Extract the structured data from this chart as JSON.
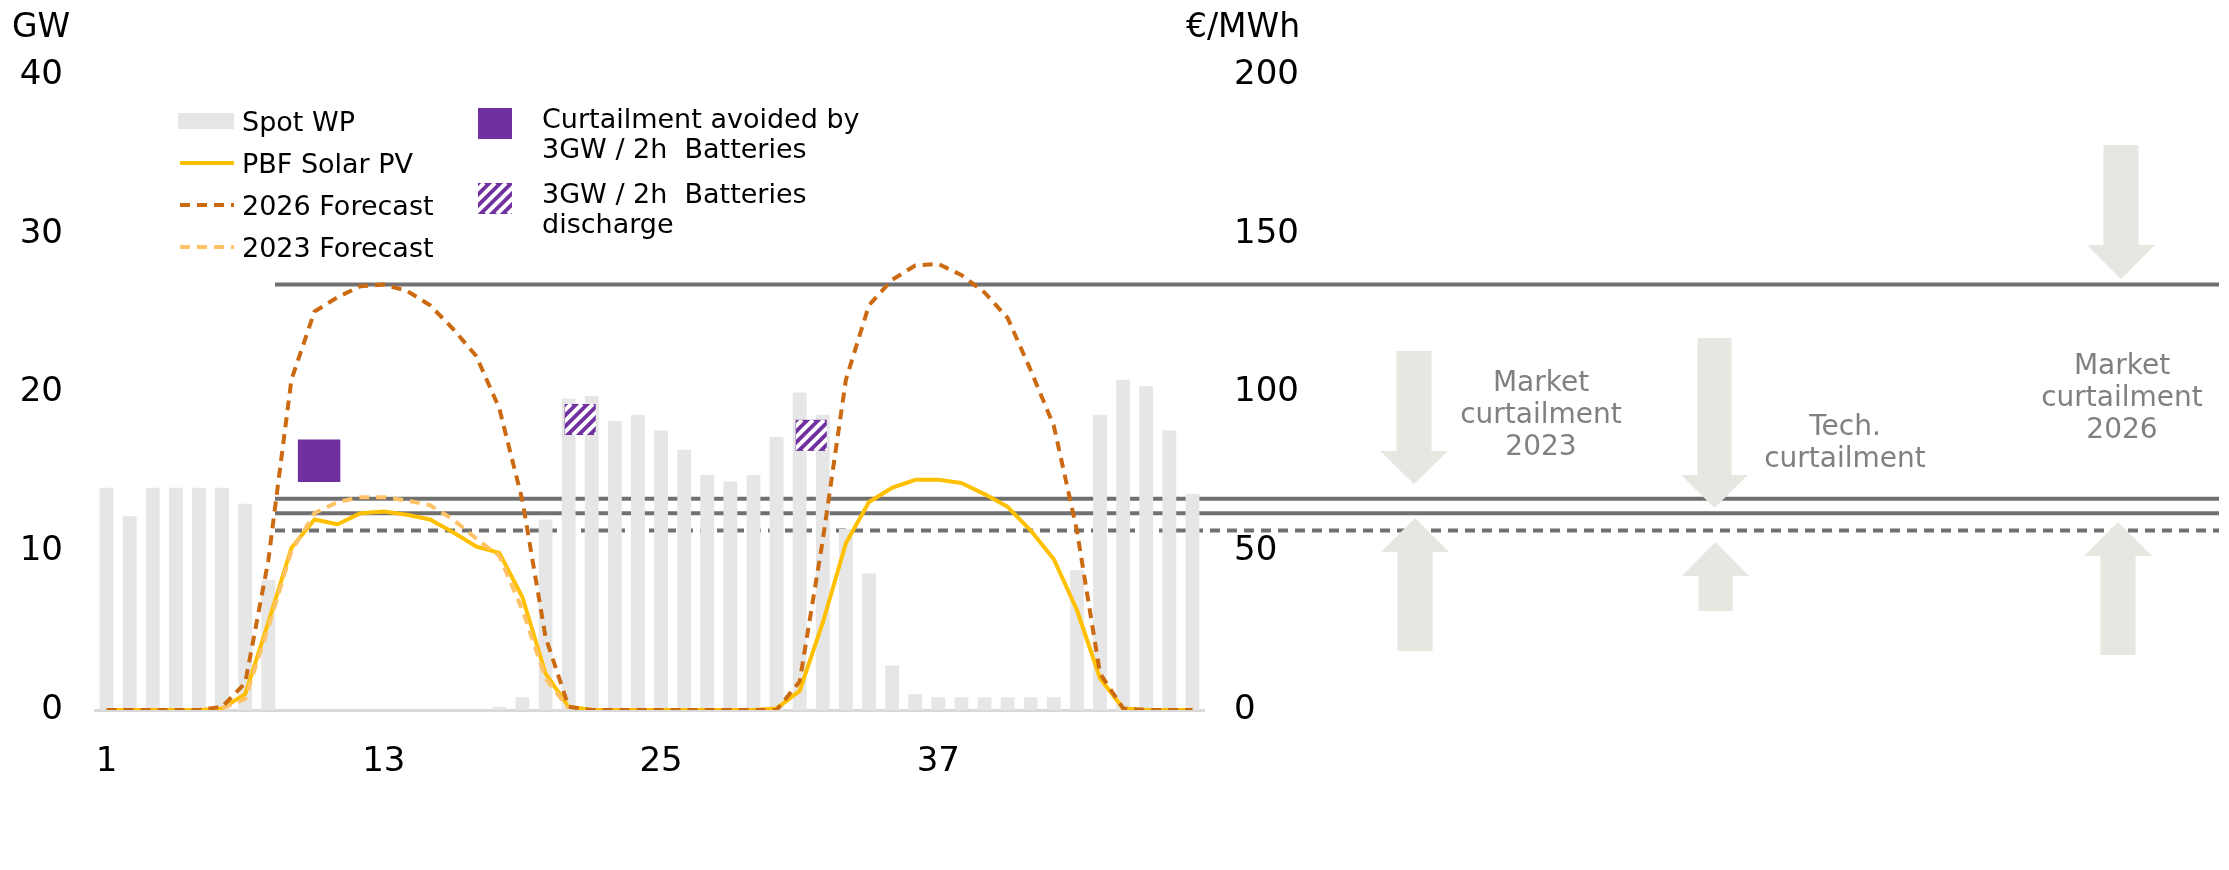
{
  "chart_data": {
    "type": "line",
    "ylabel": "GW",
    "y2label": "€/MWh",
    "x": [
      1,
      2,
      3,
      4,
      5,
      6,
      7,
      8,
      9,
      10,
      11,
      12,
      13,
      14,
      15,
      16,
      17,
      18,
      19,
      20,
      21,
      22,
      23,
      24,
      25,
      26,
      27,
      28,
      29,
      30,
      31,
      32,
      33,
      34,
      35,
      36,
      37,
      38,
      39,
      40,
      41,
      42,
      43,
      44,
      45,
      46,
      47,
      48
    ],
    "xlim": [
      0.5,
      48.5
    ],
    "xticks": [
      1,
      13,
      25,
      37
    ],
    "ylim": [
      0,
      40
    ],
    "yticks": [
      0,
      10,
      20,
      30,
      40
    ],
    "y2lim": [
      0,
      200
    ],
    "y2ticks": [
      0,
      50,
      100,
      150,
      200
    ],
    "grid": false,
    "legend": "top left",
    "series": [
      {
        "name": "Spot WP",
        "type": "bar",
        "axis": "y2",
        "color": "#e6e6e6",
        "values": [
          70,
          61,
          70,
          70,
          70,
          70,
          65,
          41,
          0,
          0,
          0,
          0,
          0,
          0,
          0,
          0,
          0,
          1,
          4,
          60,
          98,
          99,
          91,
          93,
          88,
          82,
          74,
          72,
          74,
          86,
          100,
          93,
          57,
          43,
          14,
          5,
          4,
          4,
          4,
          4,
          4,
          4,
          44,
          93,
          104,
          102,
          88,
          68
        ]
      },
      {
        "name": "PBF Solar PV",
        "color": "#ffc000",
        "line_style": "solid",
        "values": [
          0,
          0,
          0,
          0,
          0,
          0.1,
          1,
          5.5,
          10.2,
          12,
          11.7,
          12.4,
          12.5,
          12.3,
          12,
          11.2,
          10.3,
          9.9,
          7.1,
          2.3,
          0.2,
          0,
          0,
          0,
          0,
          0,
          0,
          0,
          0,
          0.1,
          1.2,
          5.5,
          10.5,
          13.1,
          14,
          14.5,
          14.5,
          14.3,
          13.6,
          12.8,
          11.3,
          9.5,
          6.3,
          2,
          0.1,
          0,
          0,
          0
        ]
      },
      {
        "name": "2026 Forecast",
        "color": "#cc6a12",
        "line_style": "dashed",
        "values": [
          0,
          0,
          0,
          0,
          0,
          0.2,
          1.7,
          9.4,
          20.8,
          25.1,
          26,
          26.7,
          26.8,
          26.4,
          25.5,
          24,
          22.3,
          19,
          13.2,
          4.6,
          0.2,
          0,
          0,
          0,
          0,
          0,
          0,
          0,
          0,
          0,
          1.8,
          10.7,
          20.8,
          25.5,
          27.1,
          28,
          28.1,
          27.4,
          26.3,
          24.7,
          21.4,
          17.9,
          11.3,
          2.3,
          0.1,
          0,
          0,
          0
        ]
      },
      {
        "name": "2023 Forecast",
        "color": "#ffc266",
        "line_style": "dashed",
        "values": [
          null,
          null,
          null,
          null,
          null,
          0.1,
          0.7,
          5.2,
          10,
          12.4,
          13.1,
          13.4,
          13.4,
          13.2,
          12.9,
          12,
          10.8,
          9.7,
          6.3,
          2,
          0.1,
          null,
          null,
          null,
          null,
          null,
          null,
          null,
          null,
          null,
          null,
          null,
          null,
          null,
          null,
          null,
          null,
          null,
          null,
          null,
          null,
          null,
          null,
          null,
          null,
          null,
          null,
          null
        ]
      },
      {
        "name": "Curtailment avoided by 3GW / 2h  Batteries",
        "type": "scatter",
        "marker": "square",
        "color": "#7030a0",
        "x": [
          10.2
        ],
        "values": [
          15.7
        ]
      },
      {
        "name": "3GW / 2h  Batteries discharge",
        "type": "scatter",
        "marker": "square",
        "color": "#7030a0",
        "x": [
          21.5,
          31.5
        ],
        "values": [
          18.3,
          17.3
        ]
      }
    ],
    "ref_lines": [
      {
        "axis": "y2",
        "value": 134,
        "color": "#707070",
        "line_style": "solid"
      },
      {
        "axis": "y2",
        "value": 66.5,
        "color": "#707070",
        "line_style": "solid"
      },
      {
        "axis": "y2",
        "value": 62,
        "color": "#707070",
        "line_style": "solid"
      },
      {
        "axis": "y2",
        "value": 56.5,
        "color": "#707070",
        "line_style": "dashed"
      }
    ],
    "annotations": [
      "Market curtailment 2023",
      "Tech. curtailment",
      "Market curtailment 2026"
    ]
  }
}
